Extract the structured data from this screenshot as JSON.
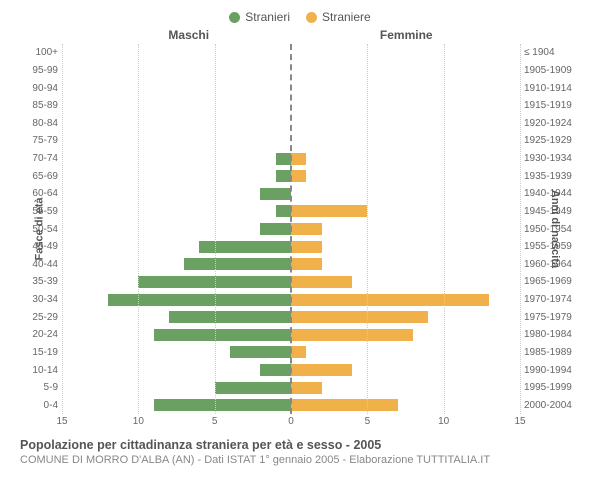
{
  "type": "population-pyramid",
  "legend": {
    "male": {
      "label": "Stranieri",
      "color": "#6aa162"
    },
    "female": {
      "label": "Straniere",
      "color": "#f0b14b"
    }
  },
  "headers": {
    "male": "Maschi",
    "female": "Femmine"
  },
  "axis": {
    "left_title": "Fasce di età",
    "right_title": "Anni di nascita",
    "x_max": 15,
    "x_ticks": [
      15,
      10,
      5,
      0,
      5,
      10,
      15
    ],
    "grid_color": "#cccccc",
    "centerline_color": "#888888",
    "tick_positions_pct": [
      0,
      16.67,
      33.33,
      50,
      66.67,
      83.33,
      100
    ]
  },
  "style": {
    "background_color": "#ffffff",
    "label_color": "#666666",
    "title_color": "#555555",
    "bar_height_ratio": 0.68,
    "label_fontsize": 10,
    "axis_title_fontsize": 11
  },
  "rows": [
    {
      "age": "100+",
      "birth": "≤ 1904",
      "male": 0,
      "female": 0
    },
    {
      "age": "95-99",
      "birth": "1905-1909",
      "male": 0,
      "female": 0
    },
    {
      "age": "90-94",
      "birth": "1910-1914",
      "male": 0,
      "female": 0
    },
    {
      "age": "85-89",
      "birth": "1915-1919",
      "male": 0,
      "female": 0
    },
    {
      "age": "80-84",
      "birth": "1920-1924",
      "male": 0,
      "female": 0
    },
    {
      "age": "75-79",
      "birth": "1925-1929",
      "male": 0,
      "female": 0
    },
    {
      "age": "70-74",
      "birth": "1930-1934",
      "male": 1,
      "female": 1
    },
    {
      "age": "65-69",
      "birth": "1935-1939",
      "male": 1,
      "female": 1
    },
    {
      "age": "60-64",
      "birth": "1940-1944",
      "male": 2,
      "female": 0
    },
    {
      "age": "55-59",
      "birth": "1945-1949",
      "male": 1,
      "female": 5
    },
    {
      "age": "50-54",
      "birth": "1950-1954",
      "male": 2,
      "female": 2
    },
    {
      "age": "45-49",
      "birth": "1955-1959",
      "male": 6,
      "female": 2
    },
    {
      "age": "40-44",
      "birth": "1960-1964",
      "male": 7,
      "female": 2
    },
    {
      "age": "35-39",
      "birth": "1965-1969",
      "male": 10,
      "female": 4
    },
    {
      "age": "30-34",
      "birth": "1970-1974",
      "male": 12,
      "female": 13
    },
    {
      "age": "25-29",
      "birth": "1975-1979",
      "male": 8,
      "female": 9
    },
    {
      "age": "20-24",
      "birth": "1980-1984",
      "male": 9,
      "female": 8
    },
    {
      "age": "15-19",
      "birth": "1985-1989",
      "male": 4,
      "female": 1
    },
    {
      "age": "10-14",
      "birth": "1990-1994",
      "male": 2,
      "female": 4
    },
    {
      "age": "5-9",
      "birth": "1995-1999",
      "male": 5,
      "female": 2
    },
    {
      "age": "0-4",
      "birth": "2000-2004",
      "male": 9,
      "female": 7
    }
  ],
  "footer": {
    "title": "Popolazione per cittadinanza straniera per età e sesso - 2005",
    "subtitle": "COMUNE DI MORRO D'ALBA (AN) - Dati ISTAT 1° gennaio 2005 - Elaborazione TUTTITALIA.IT"
  }
}
